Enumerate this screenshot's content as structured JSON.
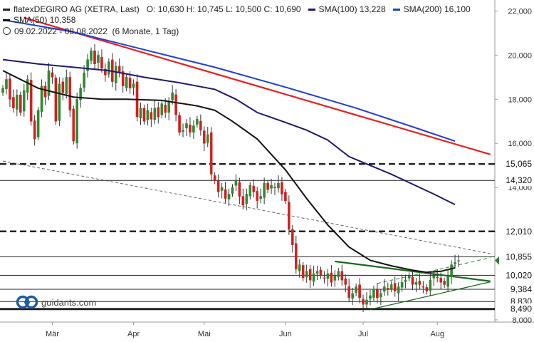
{
  "header": {
    "instrument": "flatexDEGIRO AG (XETRA, Last)",
    "ohlc": "O: 10,630  H: 10,745  L: 10,500  C: 10,690",
    "period": "09.02.2022 - 08.08.2022",
    "period_detail": "(6 Monate, 1 Tag)"
  },
  "logo": {
    "text": "guidants.com"
  },
  "chart_data": {
    "type": "candlestick",
    "title": "flatexDEGIRO AG (XETRA, Last)",
    "period": "09.02.2022 - 08.08.2022 (6 Monate, 1 Tag)",
    "last_bar": {
      "open": 10.63,
      "high": 10.745,
      "low": 10.5,
      "close": 10.69
    },
    "y_axis": {
      "min": 7.9,
      "max": 22.5,
      "ticks": [
        "8,000",
        "10,000",
        "12,000",
        "14,000",
        "16,000",
        "18,000",
        "20,000",
        "22,000"
      ]
    },
    "x_axis": {
      "labels": [
        {
          "label": "Mär",
          "index": 14
        },
        {
          "label": "Apr",
          "index": 37
        },
        {
          "label": "Mai",
          "index": 57
        },
        {
          "label": "Jun",
          "index": 80
        },
        {
          "label": "Jul",
          "index": 102
        },
        {
          "label": "Aug",
          "index": 123
        }
      ]
    },
    "closes": [
      18.5,
      18.9,
      18.0,
      17.6,
      18.2,
      17.4,
      18.4,
      18.9,
      17.0,
      16.2,
      17.5,
      18.6,
      18.1,
      19.3,
      19.0,
      17.0,
      18.7,
      18.3,
      19.0,
      17.5,
      16.1,
      18.0,
      18.5,
      19.2,
      19.8,
      20.2,
      19.6,
      20.0,
      19.4,
      19.1,
      19.7,
      18.8,
      19.5,
      19.2,
      18.6,
      19.0,
      18.5,
      18.7,
      17.2,
      17.6,
      17.0,
      17.5,
      17.1,
      17.6,
      17.2,
      17.8,
      17.4,
      17.9,
      18.3,
      17.3,
      16.5,
      16.6,
      16.9,
      16.5,
      16.8,
      17.1,
      16.6,
      16.0,
      16.4,
      14.6,
      14.3,
      13.8,
      14.0,
      13.5,
      13.7,
      14.0,
      14.3,
      13.6,
      13.2,
      13.7,
      14.1,
      13.8,
      13.4,
      13.6,
      14.2,
      13.9,
      14.1,
      14.0,
      14.2,
      13.7,
      13.4,
      12.1,
      11.4,
      10.3,
      10.5,
      9.9,
      10.2,
      9.8,
      10.1,
      10.2,
      10.0,
      9.9,
      10.1,
      9.7,
      10.0,
      10.2,
      9.8,
      9.6,
      9.0,
      9.2,
      9.5,
      9.0,
      8.7,
      8.9,
      9.1,
      9.4,
      9.0,
      9.2,
      9.5,
      9.4,
      9.6,
      9.3,
      9.5,
      9.7,
      9.8,
      10.0,
      9.6,
      9.7,
      9.6,
      9.5,
      9.3,
      9.8,
      10.0,
      9.9,
      9.7,
      9.6,
      10.0,
      10.5,
      10.6,
      10.69
    ],
    "series": [
      {
        "name": "SMA(50)",
        "value": "10,358",
        "color": "#111111",
        "points": [
          [
            0,
            19.3
          ],
          [
            10,
            18.5
          ],
          [
            20,
            18.1
          ],
          [
            28,
            18.0
          ],
          [
            35,
            18.0
          ],
          [
            45,
            17.95
          ],
          [
            55,
            17.7
          ],
          [
            60,
            17.5
          ],
          [
            65,
            17.0
          ],
          [
            72,
            16.2
          ],
          [
            80,
            14.8
          ],
          [
            86,
            13.5
          ],
          [
            92,
            12.3
          ],
          [
            98,
            11.3
          ],
          [
            104,
            10.7
          ],
          [
            110,
            10.45
          ],
          [
            116,
            10.25
          ],
          [
            120,
            10.15
          ],
          [
            124,
            10.2
          ],
          [
            128,
            10.358
          ]
        ]
      },
      {
        "name": "SMA(100)",
        "value": "13,228",
        "color": "#1c1a6e",
        "points": [
          [
            0,
            19.8
          ],
          [
            10,
            19.6
          ],
          [
            20,
            19.45
          ],
          [
            30,
            19.3
          ],
          [
            40,
            19.0
          ],
          [
            50,
            18.75
          ],
          [
            60,
            18.45
          ],
          [
            66,
            18.0
          ],
          [
            72,
            17.4
          ],
          [
            80,
            16.95
          ],
          [
            86,
            16.6
          ],
          [
            92,
            16.15
          ],
          [
            98,
            15.4
          ],
          [
            104,
            15.0
          ],
          [
            110,
            14.6
          ],
          [
            116,
            14.15
          ],
          [
            122,
            13.7
          ],
          [
            128,
            13.228
          ]
        ]
      },
      {
        "name": "SMA(200)",
        "value": "16,100",
        "color": "#1f3fd6",
        "points": [
          [
            0,
            21.6
          ],
          [
            20,
            21.05
          ],
          [
            40,
            20.25
          ],
          [
            60,
            19.45
          ],
          [
            80,
            18.55
          ],
          [
            100,
            17.6
          ],
          [
            116,
            16.75
          ],
          [
            128,
            16.1
          ]
        ]
      }
    ],
    "trendlines": [
      {
        "name": "Downtrend",
        "color": "#e82020",
        "from": [
          6,
          21.7
        ],
        "to": [
          138,
          15.5
        ]
      },
      {
        "name": "Dashed trend",
        "color": "#555555",
        "from": [
          0,
          15.2
        ],
        "to": [
          138,
          11.0
        ]
      },
      {
        "name": "Triangle upper",
        "color": "#1b6b1b",
        "from": [
          94,
          10.65
        ],
        "to": [
          138,
          9.75
        ]
      },
      {
        "name": "Triangle lower",
        "color": "#1b6b1b",
        "from": [
          104,
          8.47
        ],
        "to": [
          138,
          9.72
        ]
      },
      {
        "name": "Support dashed",
        "color": "#3a9a3a",
        "from": [
          106,
          9.65
        ],
        "to": [
          138,
          10.82
        ]
      }
    ],
    "horizontal_levels": [
      {
        "value": 15.065,
        "label": "15,065",
        "style": "dashed"
      },
      {
        "value": 14.32,
        "label": "14,320",
        "style": "solid"
      },
      {
        "value": 12.01,
        "label": "12,010",
        "style": "dashed"
      },
      {
        "value": 10.855,
        "label": "10,855",
        "style": "solid"
      },
      {
        "value": 10.02,
        "label": "10,020",
        "style": "solid"
      },
      {
        "value": 9.384,
        "label": "9,384",
        "style": "solid"
      },
      {
        "value": 8.83,
        "label": "8,830",
        "style": "solid"
      },
      {
        "value": 8.49,
        "label": "8,490",
        "style": "heavy"
      }
    ],
    "current_price": {
      "value": 10.69,
      "label": "10,690"
    }
  }
}
